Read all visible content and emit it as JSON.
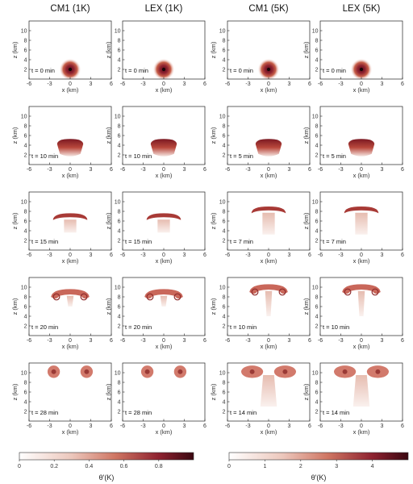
{
  "columns": [
    {
      "title": "CM1 (1K)"
    },
    {
      "title": "LEX (1K)"
    },
    {
      "title": "CM1 (5K)"
    },
    {
      "title": "LEX (5K)"
    }
  ],
  "rows": [
    {
      "times": [
        "t = 0 min",
        "t = 0 min",
        "t = 0 min",
        "t = 0 min"
      ],
      "stage": 0
    },
    {
      "times": [
        "t = 10 min",
        "t = 10 min",
        "t = 5 min",
        "t = 5 min"
      ],
      "stage": 1
    },
    {
      "times": [
        "t = 15 min",
        "t = 15 min",
        "t = 7 min",
        "t = 7 min"
      ],
      "stage": 2
    },
    {
      "times": [
        "t = 20 min",
        "t = 20 min",
        "t = 10 min",
        "t = 10 min"
      ],
      "stage": 3
    },
    {
      "times": [
        "t = 28 min",
        "t = 28 min",
        "t = 14 min",
        "t = 14 min"
      ],
      "stage": 4
    }
  ],
  "axes": {
    "xlabel": "x (km)",
    "ylabel": "z (km)",
    "xticks": [
      "-6",
      "-3",
      "0",
      "3",
      "6"
    ],
    "yticks": [
      "2",
      "4",
      "6",
      "8",
      "10"
    ],
    "xlim": [
      -6,
      6
    ],
    "ylim": [
      0,
      12
    ]
  },
  "colorbars": [
    {
      "label": "θ'(K)",
      "ticks": [
        "0",
        "0.2",
        "0.4",
        "0.6",
        "0.8"
      ],
      "range": [
        0,
        1
      ]
    },
    {
      "label": "θ'(K)",
      "ticks": [
        "0",
        "1",
        "2",
        "3",
        "4"
      ],
      "range": [
        0,
        5
      ]
    }
  ],
  "colors": {
    "low": "#ffffff",
    "mid": "#c8604a",
    "high": "#4a0a14"
  }
}
